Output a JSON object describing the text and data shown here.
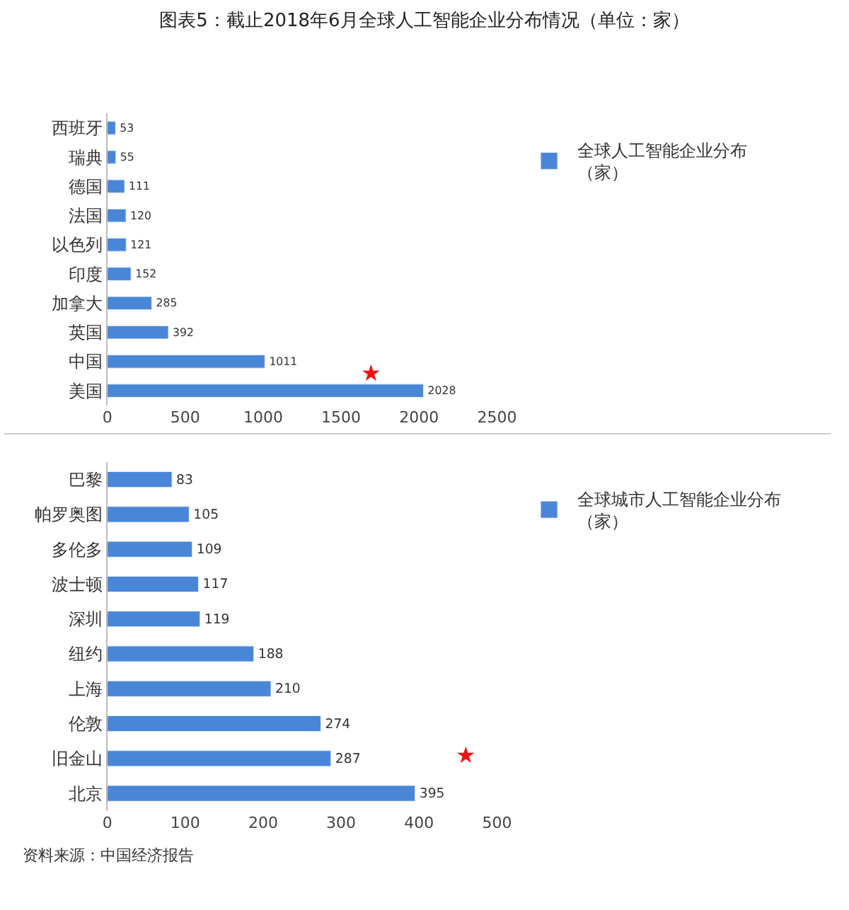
{
  "chart_data": [
    {
      "type": "bar",
      "orientation": "horizontal",
      "title": "图表5：截止2018年6月全球人工智能企业分布情况（单位：家）",
      "categories": [
        "西班牙",
        "瑞典",
        "德国",
        "法国",
        "以色列",
        "印度",
        "加拿大",
        "英国",
        "中国",
        "美国"
      ],
      "series": [
        {
          "name": "全球人工智能企业分布（家）",
          "color": "#4a86d8",
          "values": [
            53,
            55,
            111,
            120,
            121,
            152,
            285,
            392,
            1011,
            2028
          ]
        }
      ],
      "xlim": [
        0,
        2500
      ],
      "xticks": [
        0,
        500,
        1000,
        1500,
        2000,
        2500
      ],
      "data_labels": true,
      "legend": "top right",
      "annotations": [
        "★"
      ]
    },
    {
      "type": "bar",
      "orientation": "horizontal",
      "categories": [
        "巴黎",
        "帕罗奥图",
        "多伦多",
        "波士顿",
        "深圳",
        "纽约",
        "上海",
        "伦敦",
        "旧金山",
        "北京"
      ],
      "series": [
        {
          "name": "全球城市人工智能企业分布（家）",
          "color": "#4a86d8",
          "values": [
            83,
            105,
            109,
            117,
            119,
            188,
            210,
            274,
            287,
            395
          ]
        }
      ],
      "xlim": [
        0,
        500
      ],
      "xticks": [
        0,
        100,
        200,
        300,
        400,
        500
      ],
      "data_labels": true,
      "legend": "top right",
      "annotations": [
        "★",
        "资料来源：中国经济报告"
      ]
    }
  ]
}
